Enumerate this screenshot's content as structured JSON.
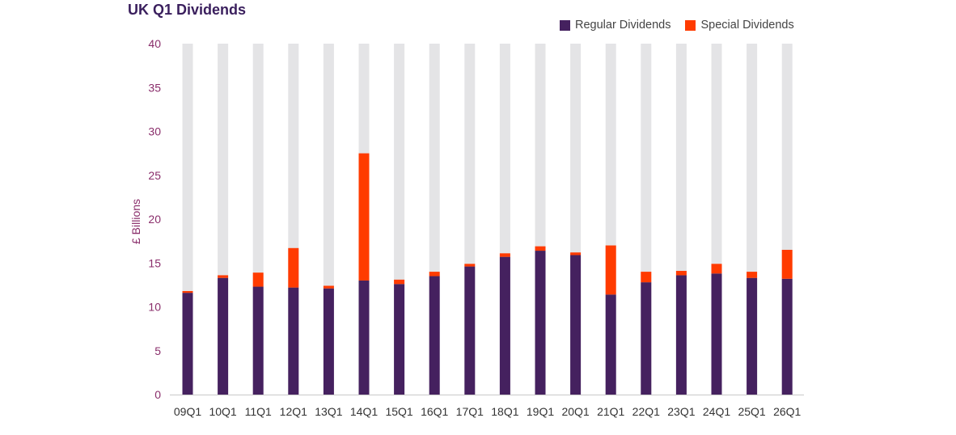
{
  "chart_data": {
    "type": "bar",
    "stacked": true,
    "title": "UK Q1 Dividends",
    "ylabel": "£ Billions",
    "xlabel": "",
    "ylim": [
      0,
      40
    ],
    "yticks": [
      0,
      5,
      10,
      15,
      20,
      25,
      30,
      35,
      40
    ],
    "grid": false,
    "background_bars": true,
    "legend_position": "top-right",
    "categories": [
      "09Q1",
      "10Q1",
      "11Q1",
      "12Q1",
      "13Q1",
      "14Q1",
      "15Q1",
      "16Q1",
      "17Q1",
      "18Q1",
      "19Q1",
      "20Q1",
      "21Q1",
      "22Q1",
      "23Q1",
      "24Q1",
      "25Q1",
      "26Q1"
    ],
    "series": [
      {
        "name": "Regular Dividends",
        "color": "#45215f",
        "values": [
          11.6,
          13.3,
          12.3,
          12.2,
          12.1,
          13.0,
          12.6,
          13.5,
          14.6,
          15.7,
          16.4,
          15.9,
          11.4,
          12.8,
          13.6,
          13.8,
          13.3,
          13.2
        ]
      },
      {
        "name": "Special Dividends",
        "color": "#ff3b00",
        "values": [
          0.2,
          0.3,
          1.6,
          4.5,
          0.3,
          14.5,
          0.5,
          0.5,
          0.3,
          0.4,
          0.5,
          0.3,
          5.6,
          1.2,
          0.5,
          1.1,
          0.7,
          3.3
        ]
      }
    ],
    "colors": {
      "background_bar": "#e4e4e6",
      "axis_text": "#8a2e6b",
      "x_tick_text": "#333333",
      "title": "#3a1f5d"
    }
  }
}
